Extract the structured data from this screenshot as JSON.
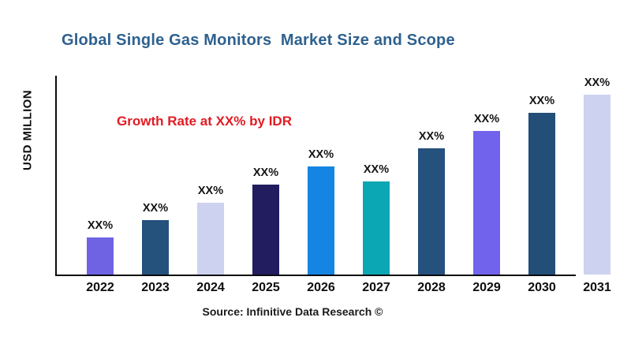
{
  "header": {
    "title": "Global Single Gas Monitors  Market Size and Scope"
  },
  "annotations": {
    "growth_note": "Growth Rate at XX% by IDR",
    "source": "Source: Infinitive Data Research ©"
  },
  "colors": {
    "title_blue": "#2e618f",
    "growth_note_red": "#e11b22",
    "axis_black": "#0b0b0b",
    "label_black": "#141414"
  },
  "chart_data": {
    "type": "bar",
    "title": "Global Single Gas Monitors  Market Size and Scope",
    "xlabel": "",
    "ylabel": "USD MILLION",
    "categories": [
      "2022",
      "2023",
      "2024",
      "2025",
      "2026",
      "2027",
      "2028",
      "2029",
      "2030",
      "2031"
    ],
    "values": [
      47,
      69,
      91,
      114,
      137,
      118,
      160,
      182,
      205,
      228
    ],
    "values_unit": "relative-estimate (numeric values masked as XX% in chart)",
    "bar_labels": [
      "XX%",
      "XX%",
      "XX%",
      "XX%",
      "XX%",
      "XX%",
      "XX%",
      "XX%",
      "XX%",
      "XX%"
    ],
    "bar_colors": [
      "#6f63e4",
      "#25517d",
      "#ccd2ef",
      "#221d5e",
      "#1485e2",
      "#0ba7b4",
      "#25517d",
      "#7163ec",
      "#224e78",
      "#ccd2ef"
    ],
    "ylim": [
      0,
      255
    ],
    "grid": false,
    "legend": false,
    "annotation": "Growth Rate at XX% by IDR",
    "source": "Source: Infinitive Data Research ©"
  }
}
